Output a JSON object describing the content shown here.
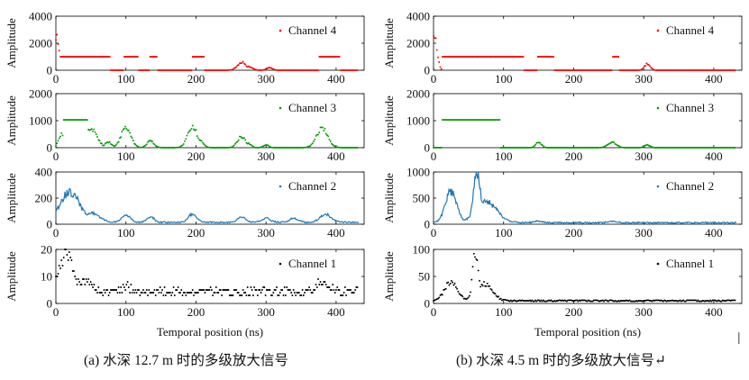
{
  "captions": {
    "a": "(a)  水深 12.7 m 时的多级放大信号",
    "b": "(b)  水深 4.5 m 时的多级放大信号↵"
  },
  "edge_mark": "|",
  "colors": {
    "ch4": "#ff0000",
    "ch3": "#009900",
    "ch2": "#1f77b4",
    "ch1": "#000000"
  },
  "chart_data": [
    {
      "type": "scatter",
      "panel": "a",
      "channel": "Channel 4",
      "xlabel": "",
      "ylabel": "Amplitude",
      "xlim": [
        0,
        440
      ],
      "ylim": [
        0,
        4000
      ],
      "xticks": [
        0,
        100,
        200,
        300,
        400
      ],
      "yticks": [
        0,
        2000,
        4000
      ],
      "legend": "Channel 4",
      "legend_position": "top-right",
      "baseline": 0,
      "segments": [
        [
          0,
          78,
          1000
        ],
        [
          96,
          118,
          1000
        ],
        [
          134,
          144,
          1000
        ],
        [
          195,
          212,
          1000
        ],
        [
          375,
          405,
          1000
        ]
      ],
      "peaks": [
        [
          1,
          2500,
          4
        ],
        [
          265,
          600,
          6
        ],
        [
          275,
          300,
          5
        ],
        [
          305,
          200,
          4
        ]
      ]
    },
    {
      "type": "scatter",
      "panel": "a",
      "channel": "Channel 3",
      "xlabel": "",
      "ylabel": "Amplitude",
      "xlim": [
        0,
        440
      ],
      "ylim": [
        0,
        2000
      ],
      "xticks": [
        0,
        100,
        200,
        300,
        400
      ],
      "yticks": [
        0,
        1000,
        2000
      ],
      "legend": "Channel 3",
      "legend_position": "top-right",
      "baseline": 0,
      "segments": [
        [
          10,
          45,
          1030
        ]
      ],
      "peaks": [
        [
          8,
          500,
          4
        ],
        [
          50,
          700,
          8
        ],
        [
          58,
          300,
          6
        ],
        [
          75,
          200,
          5
        ],
        [
          100,
          750,
          7
        ],
        [
          135,
          250,
          5
        ],
        [
          195,
          750,
          7
        ],
        [
          205,
          300,
          5
        ],
        [
          265,
          400,
          6
        ],
        [
          275,
          150,
          4
        ],
        [
          300,
          100,
          4
        ],
        [
          380,
          700,
          8
        ]
      ]
    },
    {
      "type": "line",
      "panel": "a",
      "channel": "Channel 2",
      "xlabel": "",
      "ylabel": "Amplitude",
      "xlim": [
        0,
        440
      ],
      "ylim": [
        0,
        400
      ],
      "xticks": [
        0,
        100,
        200,
        300,
        400
      ],
      "yticks": [
        0,
        200,
        400
      ],
      "legend": "Channel 2",
      "legend_position": "top-right",
      "baseline": 15,
      "peaks": [
        [
          20,
          230,
          14
        ],
        [
          50,
          70,
          12
        ],
        [
          100,
          60,
          6
        ],
        [
          135,
          40,
          5
        ],
        [
          195,
          60,
          6
        ],
        [
          265,
          40,
          6
        ],
        [
          300,
          30,
          6
        ],
        [
          340,
          30,
          6
        ],
        [
          385,
          60,
          8
        ]
      ]
    },
    {
      "type": "scatter",
      "panel": "a",
      "channel": "Channel 1",
      "xlabel": "Temporal position (ns)",
      "ylabel": "Amplitude",
      "xlim": [
        0,
        440
      ],
      "ylim": [
        0,
        20
      ],
      "xticks": [
        0,
        100,
        200,
        300,
        400
      ],
      "yticks": [
        0,
        10,
        20
      ],
      "legend": "Channel 1",
      "legend_position": "top-right",
      "baseline": 4.5,
      "peaks": [
        [
          15,
          14,
          10
        ],
        [
          40,
          4,
          10
        ],
        [
          100,
          2,
          6
        ],
        [
          380,
          4,
          8
        ]
      ]
    },
    {
      "type": "scatter",
      "panel": "b",
      "channel": "Channel 4",
      "xlabel": "",
      "ylabel": "Amplitude",
      "xlim": [
        0,
        440
      ],
      "ylim": [
        0,
        4000
      ],
      "xticks": [
        0,
        100,
        200,
        300,
        400
      ],
      "yticks": [
        0,
        2000,
        4000
      ],
      "legend": "Channel 4",
      "legend_position": "top-right",
      "baseline": 0,
      "segments": [
        [
          12,
          128,
          1000
        ],
        [
          148,
          172,
          1000
        ],
        [
          255,
          265,
          1000
        ]
      ],
      "peaks": [
        [
          1,
          2600,
          4
        ],
        [
          305,
          500,
          4
        ]
      ]
    },
    {
      "type": "scatter",
      "panel": "b",
      "channel": "Channel 3",
      "xlabel": "",
      "ylabel": "Amplitude",
      "xlim": [
        0,
        440
      ],
      "ylim": [
        0,
        2000
      ],
      "xticks": [
        0,
        100,
        200,
        300,
        400
      ],
      "yticks": [
        0,
        1000,
        2000
      ],
      "legend": "Channel 3",
      "legend_position": "top-right",
      "baseline": 0,
      "segments": [
        [
          12,
          95,
          1030
        ]
      ],
      "peaks": [
        [
          150,
          200,
          4
        ],
        [
          255,
          200,
          6
        ],
        [
          305,
          100,
          4
        ]
      ]
    },
    {
      "type": "line",
      "panel": "b",
      "channel": "Channel 2",
      "xlabel": "",
      "ylabel": "Amplitude",
      "xlim": [
        0,
        440
      ],
      "ylim": [
        0,
        1000
      ],
      "xticks": [
        0,
        100,
        200,
        300,
        400
      ],
      "yticks": [
        0,
        500,
        1000
      ],
      "legend": "Channel 2",
      "legend_position": "top-right",
      "baseline": 30,
      "peaks": [
        [
          25,
          600,
          8
        ],
        [
          62,
          1000,
          5
        ],
        [
          75,
          400,
          15
        ],
        [
          150,
          30,
          6
        ],
        [
          255,
          30,
          6
        ]
      ]
    },
    {
      "type": "scatter",
      "panel": "b",
      "channel": "Channel 1",
      "xlabel": "Temporal position (ns)",
      "ylabel": "Amplitude",
      "xlim": [
        0,
        440
      ],
      "ylim": [
        0,
        100
      ],
      "xticks": [
        0,
        100,
        200,
        300,
        400
      ],
      "yticks": [
        0,
        50,
        100
      ],
      "legend": "Channel 1",
      "legend_position": "top-right",
      "baseline": 5,
      "peaks": [
        [
          25,
          35,
          9
        ],
        [
          60,
          90,
          4
        ],
        [
          72,
          30,
          12
        ]
      ]
    }
  ]
}
